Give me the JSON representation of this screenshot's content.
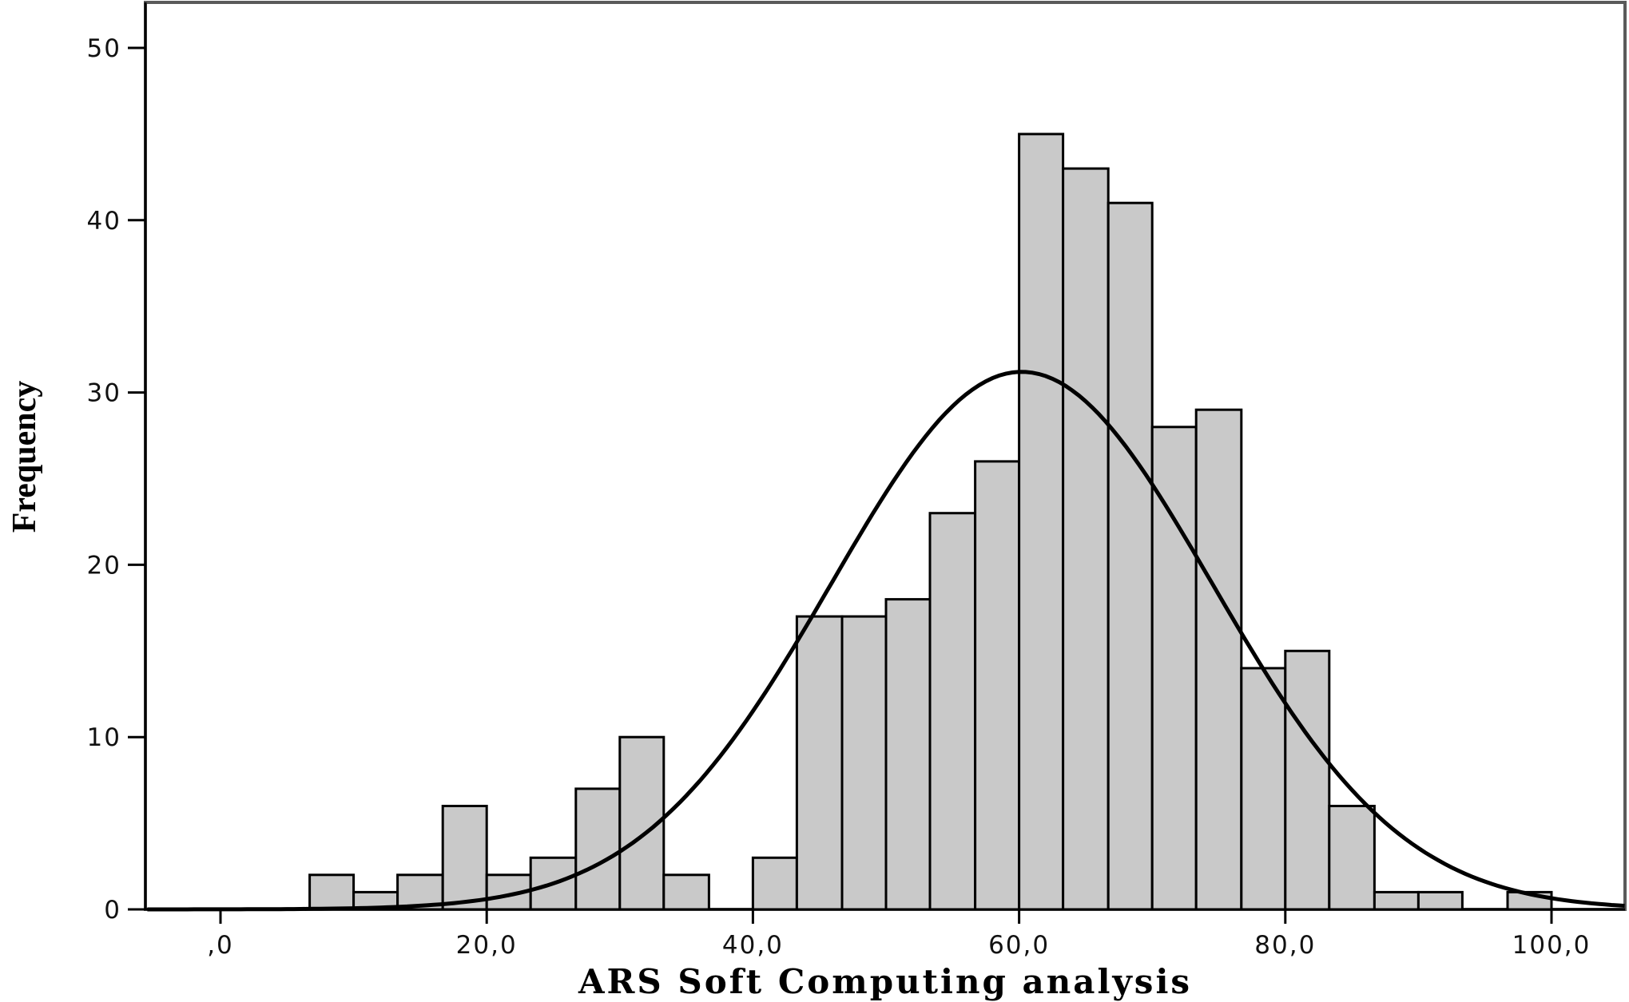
{
  "chart_data": {
    "type": "bar",
    "subtype": "histogram",
    "xlabel": "ARS Soft Computing analysis",
    "ylabel": "Frequency",
    "xlim": [
      -5.5,
      105.5
    ],
    "ylim": [
      0,
      52
    ],
    "x_ticks": [
      0,
      20,
      40,
      60,
      80,
      100
    ],
    "x_tick_labels": [
      ",0",
      "20,0",
      "40,0",
      "60,0",
      "80,0",
      "100,0"
    ],
    "y_ticks": [
      0,
      10,
      20,
      30,
      40,
      50
    ],
    "y_tick_labels": [
      "0",
      "10",
      "20",
      "30",
      "40",
      "50"
    ],
    "bin_width": 3.33,
    "bins": [
      {
        "start": 6.7,
        "end": 10.0,
        "count": 2
      },
      {
        "start": 10.0,
        "end": 13.3,
        "count": 1
      },
      {
        "start": 13.3,
        "end": 16.7,
        "count": 2
      },
      {
        "start": 16.7,
        "end": 20.0,
        "count": 6
      },
      {
        "start": 20.0,
        "end": 23.3,
        "count": 2
      },
      {
        "start": 23.3,
        "end": 26.7,
        "count": 3
      },
      {
        "start": 26.7,
        "end": 30.0,
        "count": 7
      },
      {
        "start": 30.0,
        "end": 33.3,
        "count": 10
      },
      {
        "start": 33.3,
        "end": 36.7,
        "count": 2
      },
      {
        "start": 40.0,
        "end": 43.3,
        "count": 3
      },
      {
        "start": 43.3,
        "end": 46.7,
        "count": 17
      },
      {
        "start": 46.7,
        "end": 50.0,
        "count": 17
      },
      {
        "start": 50.0,
        "end": 53.3,
        "count": 18
      },
      {
        "start": 53.3,
        "end": 56.7,
        "count": 23
      },
      {
        "start": 56.7,
        "end": 60.0,
        "count": 26
      },
      {
        "start": 60.0,
        "end": 63.3,
        "count": 45
      },
      {
        "start": 63.3,
        "end": 66.7,
        "count": 43
      },
      {
        "start": 66.7,
        "end": 70.0,
        "count": 41
      },
      {
        "start": 70.0,
        "end": 73.3,
        "count": 28
      },
      {
        "start": 73.3,
        "end": 76.7,
        "count": 29
      },
      {
        "start": 76.7,
        "end": 80.0,
        "count": 14
      },
      {
        "start": 80.0,
        "end": 83.3,
        "count": 15
      },
      {
        "start": 83.3,
        "end": 86.7,
        "count": 6
      },
      {
        "start": 86.7,
        "end": 90.0,
        "count": 1
      },
      {
        "start": 90.0,
        "end": 93.3,
        "count": 1
      },
      {
        "start": 96.7,
        "end": 100.0,
        "count": 1
      }
    ],
    "normal_curve": {
      "mean": 60.2,
      "sd": 14.3,
      "peak": 31.2
    },
    "bar_fill": "#c9c9c9",
    "bar_stroke": "#000000",
    "curve_color": "#000000",
    "grid": false,
    "legend": "none"
  }
}
